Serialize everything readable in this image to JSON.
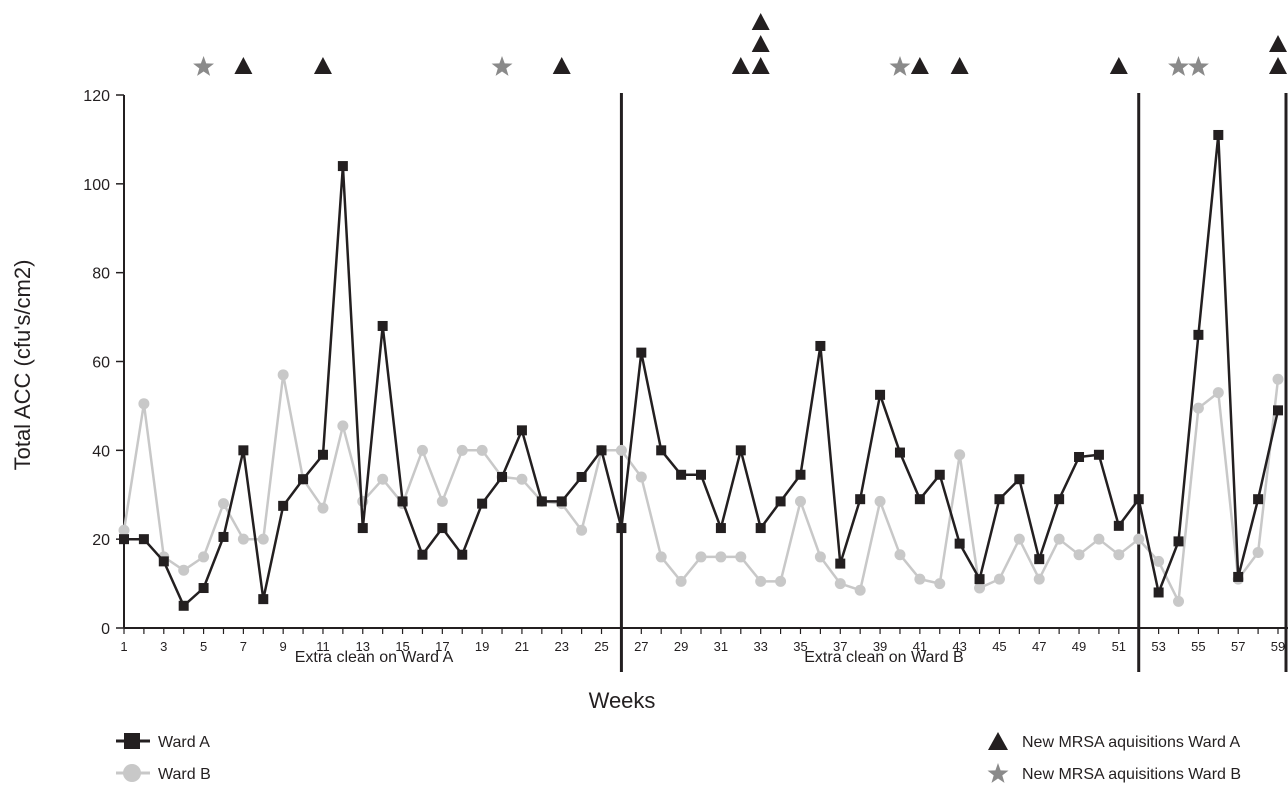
{
  "chart_data": {
    "type": "line",
    "xlabel": "Weeks",
    "ylabel": "Total ACC (cfu's/cm2)",
    "ylim": [
      0,
      120
    ],
    "yticks": [
      0,
      20,
      40,
      60,
      80,
      100,
      120
    ],
    "xlim": [
      1,
      59
    ],
    "xtick_labels": [
      1,
      3,
      5,
      7,
      9,
      11,
      13,
      15,
      17,
      19,
      21,
      23,
      25,
      27,
      29,
      31,
      33,
      35,
      37,
      39,
      41,
      43,
      45,
      47,
      49,
      51,
      53,
      55,
      57,
      59
    ],
    "grid": false,
    "legend_position": "bottom",
    "period_dividers": [
      26,
      52
    ],
    "period_labels": [
      "Extra clean on Ward A",
      "Extra clean on Ward B"
    ],
    "colors": {
      "ward_a": "#231f20",
      "ward_b": "#c8c8c8",
      "star": "#8a8a8a"
    },
    "x": [
      1,
      2,
      3,
      4,
      5,
      6,
      7,
      8,
      9,
      10,
      11,
      12,
      13,
      14,
      15,
      16,
      17,
      18,
      19,
      20,
      21,
      22,
      23,
      24,
      25,
      26,
      27,
      28,
      29,
      30,
      31,
      32,
      33,
      34,
      35,
      36,
      37,
      38,
      39,
      40,
      41,
      42,
      43,
      44,
      45,
      46,
      47,
      48,
      49,
      50,
      51,
      52,
      53,
      54,
      55,
      56,
      57,
      58,
      59
    ],
    "series": [
      {
        "name": "Ward A",
        "marker": "square",
        "values": [
          20,
          20,
          15,
          5,
          9,
          20.5,
          40,
          6.5,
          27.5,
          33.5,
          39,
          104,
          22.5,
          68,
          28.5,
          16.5,
          22.5,
          16.5,
          28,
          34,
          44.5,
          28.5,
          28.5,
          34,
          40,
          22.5,
          62,
          40,
          34.5,
          34.5,
          22.5,
          40,
          22.5,
          28.5,
          34.5,
          63.5,
          14.5,
          29,
          52.5,
          39.5,
          29,
          34.5,
          19,
          11,
          29,
          33.5,
          15.5,
          29,
          38.5,
          39,
          23,
          29,
          8,
          19.5,
          66,
          111,
          11.5,
          29,
          49
        ]
      },
      {
        "name": "Ward B",
        "marker": "circle",
        "values": [
          22,
          50.5,
          16,
          13,
          16,
          28,
          20,
          20,
          57,
          33.5,
          27,
          45.5,
          28.5,
          33.5,
          28,
          40,
          28.5,
          40,
          40,
          34,
          33.5,
          28.5,
          28,
          22,
          40,
          40,
          34,
          16,
          10.5,
          16,
          16,
          16,
          10.5,
          10.5,
          28.5,
          16,
          10,
          8.5,
          28.5,
          16.5,
          11,
          10,
          39,
          9,
          11,
          20,
          11,
          20,
          16.5,
          20,
          16.5,
          20,
          15,
          6,
          49.5,
          53,
          11,
          17,
          56
        ]
      }
    ],
    "events": {
      "ward_a_name": "New MRSA aquisitions Ward A",
      "ward_a": [
        [
          7,
          1
        ],
        [
          11,
          1
        ],
        [
          23,
          1
        ],
        [
          32,
          1
        ],
        [
          33,
          3
        ],
        [
          41,
          1
        ],
        [
          43,
          1
        ],
        [
          51,
          1
        ],
        [
          59,
          2
        ]
      ],
      "ward_b_name": "New MRSA aquisitions Ward B",
      "ward_b": [
        [
          5,
          1
        ],
        [
          20,
          1
        ],
        [
          40,
          1
        ],
        [
          54,
          1
        ],
        [
          55,
          1
        ]
      ]
    }
  },
  "legend": {
    "ward_a": "Ward A",
    "ward_b": "Ward B",
    "mrsa_a": "New MRSA aquisitions Ward A",
    "mrsa_b": "New MRSA aquisitions Ward B"
  }
}
